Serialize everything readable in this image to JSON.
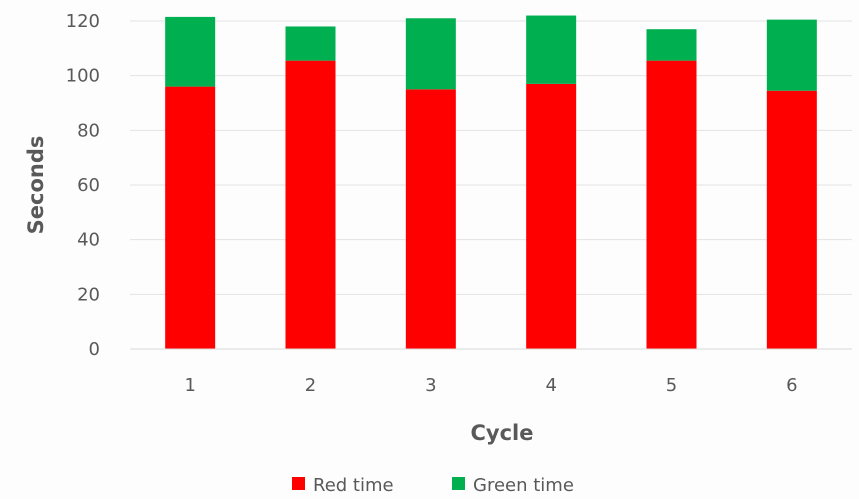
{
  "chart_data": {
    "type": "bar",
    "stacked": true,
    "categories": [
      "1",
      "2",
      "3",
      "4",
      "5",
      "6"
    ],
    "series": [
      {
        "name": "Red time",
        "color": "#ff0000",
        "values": [
          96,
          105.5,
          95,
          97,
          105.5,
          94.5
        ]
      },
      {
        "name": "Green time",
        "color": "#00b050",
        "values": [
          25.5,
          12.5,
          26,
          25,
          11.5,
          26
        ]
      }
    ],
    "xlabel": "Cycle",
    "ylabel": "Seconds",
    "ylim": [
      0,
      120
    ],
    "yticks": [
      0,
      20,
      40,
      60,
      80,
      100,
      120
    ],
    "grid": true,
    "legend_position": "bottom"
  }
}
